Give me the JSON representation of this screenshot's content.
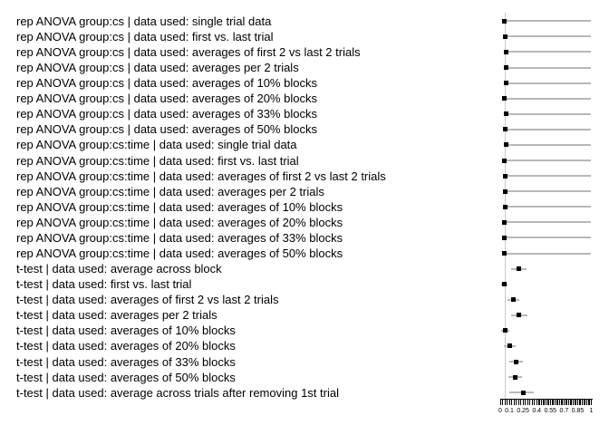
{
  "figure": {
    "description": "Forest-style plot of p-values for different statistical tests and data aggregation methods, with square point estimates, gray horizontal error bars, a vertical reference line at p = 0.05, and a dense ruler-style x axis from 0 to 1."
  },
  "colors": {
    "background": "#ffffff",
    "point": "#000000",
    "error_bar": "#b8b8b8",
    "reference_line": "#c9c9c9",
    "axis": "#000000",
    "text": "#000000"
  },
  "chart_data": {
    "type": "scatter",
    "subtype": "forest-plot",
    "title": "",
    "xlabel": "",
    "ylabel": "",
    "xlim": [
      0,
      1
    ],
    "grid": false,
    "legend": "none",
    "reference_line_x": 0.05,
    "x_minor_tick_step": 0.025,
    "x_ticks_labeled": [
      0,
      0.1,
      0.25,
      0.4,
      0.55,
      0.7,
      0.85,
      1
    ],
    "x_tick_label_strings": [
      "0",
      "0.1",
      "0.25",
      "0.4",
      "0.55",
      "0.7",
      "0.85",
      "1"
    ],
    "rows": [
      {
        "label": "rep ANOVA group:cs | data used: single trial data",
        "p": 0.04,
        "ci": [
          0.04,
          1.0
        ]
      },
      {
        "label": "rep ANOVA group:cs | data used: first vs. last trial",
        "p": 0.05,
        "ci": [
          0.05,
          1.0
        ]
      },
      {
        "label": "rep ANOVA group:cs | data used: averages of first 2 vs last 2 trials",
        "p": 0.06,
        "ci": [
          0.06,
          1.0
        ]
      },
      {
        "label": "rep ANOVA group:cs | data used: averages per 2 trials",
        "p": 0.06,
        "ci": [
          0.06,
          1.0
        ]
      },
      {
        "label": "rep ANOVA group:cs | data used: averages of 10% blocks",
        "p": 0.06,
        "ci": [
          0.06,
          1.0
        ]
      },
      {
        "label": "rep ANOVA group:cs | data used: averages of 20% blocks",
        "p": 0.043,
        "ci": [
          0.043,
          1.0
        ]
      },
      {
        "label": "rep ANOVA group:cs | data used: averages of 33% blocks",
        "p": 0.06,
        "ci": [
          0.06,
          1.0
        ]
      },
      {
        "label": "rep ANOVA group:cs | data used: averages of 50% blocks",
        "p": 0.05,
        "ci": [
          0.05,
          1.0
        ]
      },
      {
        "label": "rep ANOVA group:cs:time | data used: single trial data",
        "p": 0.067,
        "ci": [
          0.067,
          1.0
        ]
      },
      {
        "label": "rep ANOVA group:cs:time | data used: first vs. last trial",
        "p": 0.043,
        "ci": [
          0.043,
          1.0
        ]
      },
      {
        "label": "rep ANOVA group:cs:time | data used: averages of first 2 vs last 2 trials",
        "p": 0.053,
        "ci": [
          0.053,
          1.0
        ]
      },
      {
        "label": "rep ANOVA group:cs:time | data used: averages per 2 trials",
        "p": 0.053,
        "ci": [
          0.053,
          1.0
        ]
      },
      {
        "label": "rep ANOVA group:cs:time | data used: averages of 10% blocks",
        "p": 0.053,
        "ci": [
          0.053,
          1.0
        ]
      },
      {
        "label": "rep ANOVA group:cs:time | data used: averages of 20% blocks",
        "p": 0.04,
        "ci": [
          0.04,
          1.0
        ]
      },
      {
        "label": "rep ANOVA group:cs:time | data used: averages of 33% blocks",
        "p": 0.047,
        "ci": [
          0.047,
          1.0
        ]
      },
      {
        "label": "rep ANOVA group:cs:time | data used: averages of 50% blocks",
        "p": 0.047,
        "ci": [
          0.047,
          1.0
        ]
      },
      {
        "label": "t-test | data used: average across block",
        "p": 0.2,
        "ci": [
          0.12,
          0.29
        ]
      },
      {
        "label": "t-test | data used: first vs. last trial",
        "p": 0.04,
        "ci": [
          0.005,
          0.075
        ]
      },
      {
        "label": "t-test | data used: averages of first 2 vs last 2 trials",
        "p": 0.14,
        "ci": [
          0.08,
          0.21
        ]
      },
      {
        "label": "t-test | data used: averages per 2 trials",
        "p": 0.2,
        "ci": [
          0.123,
          0.297
        ]
      },
      {
        "label": "t-test | data used: averages of 10% blocks",
        "p": 0.053,
        "ci": [
          0.013,
          0.097
        ]
      },
      {
        "label": "t-test | data used: averages of 20% blocks",
        "p": 0.103,
        "ci": [
          0.04,
          0.173
        ]
      },
      {
        "label": "t-test | data used: averages of 33% blocks",
        "p": 0.173,
        "ci": [
          0.097,
          0.253
        ]
      },
      {
        "label": "t-test | data used: averages of 50% blocks",
        "p": 0.167,
        "ci": [
          0.087,
          0.24
        ]
      },
      {
        "label": "t-test | data used: average across trials after removing 1st trial",
        "p": 0.253,
        "ci": [
          0.097,
          0.373
        ]
      }
    ]
  }
}
